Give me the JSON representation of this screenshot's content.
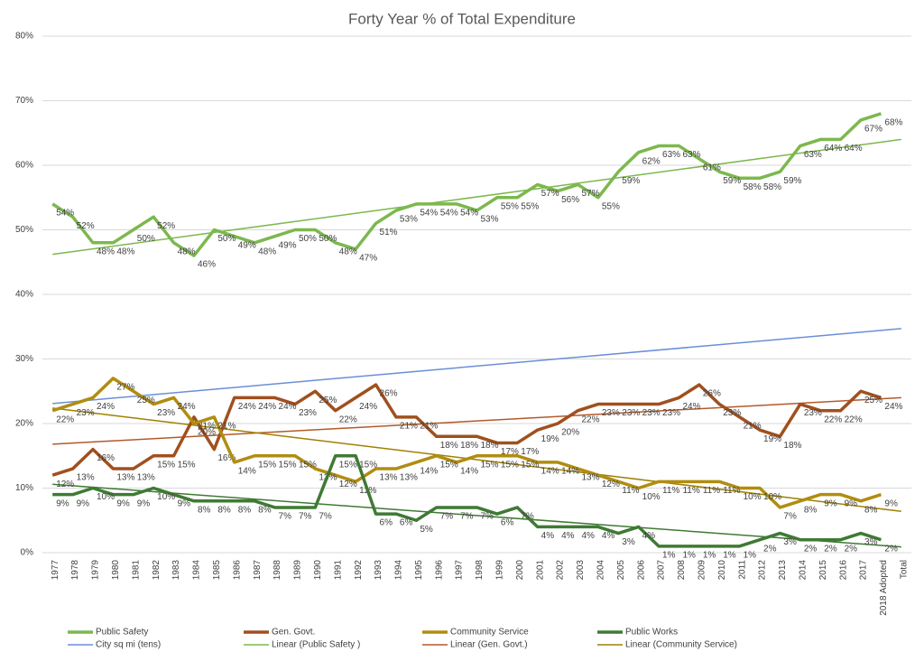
{
  "chart_data": {
    "type": "line",
    "title": "Forty Year % of Total Expenditure",
    "categories": [
      "1977",
      "1978",
      "1979",
      "1980",
      "1981",
      "1982",
      "1983",
      "1984",
      "1985",
      "1986",
      "1987",
      "1988",
      "1989",
      "1990",
      "1991",
      "1992",
      "1993",
      "1994",
      "1995",
      "1996",
      "1997",
      "1998",
      "1999",
      "2000",
      "2001",
      "2002",
      "2003",
      "2004",
      "2005",
      "2006",
      "2007",
      "2008",
      "2009",
      "2010",
      "2011",
      "2012",
      "2013",
      "2014",
      "2015",
      "2016",
      "2017",
      "2018 Adopted",
      "Total"
    ],
    "series": [
      {
        "name": "Public Safety",
        "color": "#7cb84e",
        "values": [
          54,
          52,
          48,
          48,
          50,
          52,
          48,
          46,
          50,
          49,
          48,
          49,
          50,
          50,
          48,
          47,
          51,
          53,
          54,
          54,
          54,
          53,
          55,
          55,
          57,
          56,
          57,
          55,
          59,
          62,
          63,
          63,
          61,
          59,
          58,
          58,
          59,
          63,
          64,
          64,
          67,
          68,
          null
        ],
        "value_labels": [
          "54%",
          "52%",
          "48%",
          "48%",
          "50%",
          "52%",
          "48%",
          "46%",
          "50%",
          "49%",
          "48%",
          "49%",
          "50%",
          "50%",
          "48%",
          "47%",
          "51%",
          "53%",
          "54%",
          "54%",
          "54%",
          "53%",
          "55%",
          "55%",
          "57%",
          "56%",
          "57%",
          "55%",
          "59%",
          "62%",
          "63%",
          "63%",
          "61%",
          "59%",
          "58%",
          "58%",
          "59%",
          "63%",
          "64%",
          "64%",
          "67%",
          "68%",
          null
        ]
      },
      {
        "name": "Gen. Govt.",
        "color": "#a0501e",
        "values": [
          12,
          13,
          16,
          13,
          13,
          15,
          15,
          21,
          16,
          24,
          24,
          24,
          23,
          25,
          22,
          24,
          26,
          21,
          21,
          18,
          18,
          18,
          17,
          17,
          19,
          20,
          22,
          23,
          23,
          23,
          23,
          24,
          26,
          23,
          21,
          19,
          18,
          23,
          22,
          22,
          25,
          24,
          null
        ],
        "value_labels": [
          "12%",
          "13%",
          "16%",
          "13%",
          "13%",
          "15%",
          "15%",
          "21%",
          "16%",
          "24%",
          "24%",
          "24%",
          "23%",
          "25%",
          "22%",
          "24%",
          "26%",
          "21%",
          "21%",
          "18%",
          "18%",
          "18%",
          "17%",
          "17%",
          "19%",
          "20%",
          "22%",
          "23%",
          "23%",
          "23%",
          "23%",
          "24%",
          "26%",
          "23%",
          "21%",
          "19%",
          "18%",
          "23%",
          "22%",
          "22%",
          "25%",
          "24%",
          null
        ]
      },
      {
        "name": "Community Service",
        "color": "#b08d10",
        "values": [
          22,
          23,
          24,
          27,
          25,
          23,
          24,
          20,
          21,
          14,
          15,
          15,
          15,
          13,
          12,
          11,
          13,
          13,
          14,
          15,
          14,
          15,
          15,
          15,
          14,
          14,
          13,
          12,
          11,
          10,
          11,
          11,
          11,
          11,
          10,
          10,
          7,
          8,
          9,
          9,
          8,
          9,
          null
        ],
        "value_labels": [
          "22%",
          "23%",
          "24%",
          "27%",
          "25%",
          "23%",
          "24%",
          "20%",
          "21%",
          "14%",
          "15%",
          "15%",
          "15%",
          "13%",
          "12%",
          "11%",
          "13%",
          "13%",
          "14%",
          "15%",
          "14%",
          "15%",
          "15%",
          "15%",
          "14%",
          "14%",
          "13%",
          "12%",
          "11%",
          "10%",
          "11%",
          "11%",
          "11%",
          "11%",
          "10%",
          "10%",
          "7%",
          "8%",
          "9%",
          "9%",
          "8%",
          "9%",
          null
        ]
      },
      {
        "name": "Public Works",
        "color": "#3f7a34",
        "values": [
          9,
          9,
          10,
          9,
          9,
          10,
          9,
          8,
          8,
          8,
          8,
          7,
          7,
          7,
          15,
          15,
          6,
          6,
          5,
          7,
          7,
          7,
          6,
          7,
          4,
          4,
          4,
          4,
          3,
          4,
          1,
          1,
          1,
          1,
          1,
          2,
          3,
          2,
          2,
          2,
          3,
          2,
          null
        ],
        "value_labels": [
          "9%",
          "9%",
          "10%",
          "9%",
          "9%",
          "10%",
          "9%",
          "8%",
          "8%",
          "8%",
          "8%",
          "7%",
          "7%",
          "7%",
          "15%",
          "15%",
          "6%",
          "6%",
          "5%",
          "7%",
          "7%",
          "7%",
          "6%",
          "7%",
          "4%",
          "4%",
          "4%",
          "4%",
          "3%",
          "4%",
          "1%",
          "1%",
          "1%",
          "1%",
          "1%",
          "2%",
          "3%",
          "2%",
          "2%",
          "2%",
          "3%",
          "2%",
          null
        ]
      }
    ],
    "trendlines": [
      {
        "name": "City sq mi (tens)",
        "color": "#6a8fd6",
        "values": [
          23.1,
          34.7
        ]
      },
      {
        "name": "Linear (Public Safety )",
        "color": "#7cb84e",
        "values": [
          46.2,
          64.0
        ]
      },
      {
        "name": "Linear (Gen. Govt.)",
        "color": "#b35a2a",
        "values": [
          16.8,
          24.0
        ]
      },
      {
        "name": "Linear (Community Service)",
        "color": "#a08000",
        "values": [
          22.4,
          6.4
        ]
      },
      {
        "color": "#3f7a34",
        "values": [
          10.6,
          0.9
        ]
      }
    ],
    "ylim": [
      0,
      80
    ],
    "yticks": [
      {
        "value": 0,
        "label": "0%"
      },
      {
        "value": 10,
        "label": "10%"
      },
      {
        "value": 20,
        "label": "20%"
      },
      {
        "value": 30,
        "label": "30%"
      },
      {
        "value": 40,
        "label": "40%"
      },
      {
        "value": 50,
        "label": "50%"
      },
      {
        "value": 60,
        "label": "60%"
      },
      {
        "value": 70,
        "label": "70%"
      },
      {
        "value": 80,
        "label": "80%"
      }
    ],
    "grid": true
  }
}
